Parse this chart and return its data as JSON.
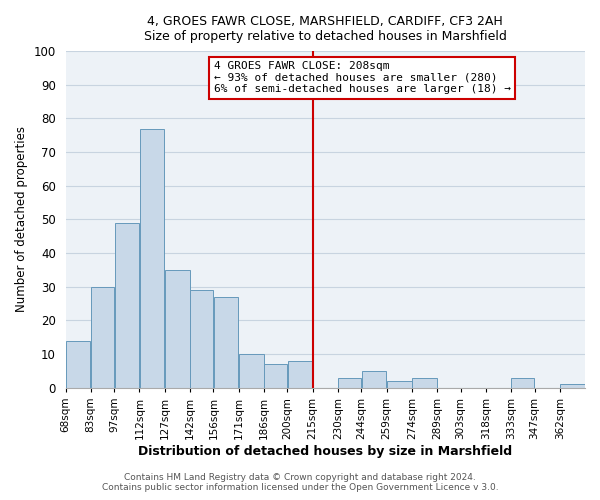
{
  "title": "4, GROES FAWR CLOSE, MARSHFIELD, CARDIFF, CF3 2AH",
  "subtitle": "Size of property relative to detached houses in Marshfield",
  "xlabel": "Distribution of detached houses by size in Marshfield",
  "ylabel": "Number of detached properties",
  "bin_labels": [
    "68sqm",
    "83sqm",
    "97sqm",
    "112sqm",
    "127sqm",
    "142sqm",
    "156sqm",
    "171sqm",
    "186sqm",
    "200sqm",
    "215sqm",
    "230sqm",
    "244sqm",
    "259sqm",
    "274sqm",
    "289sqm",
    "303sqm",
    "318sqm",
    "333sqm",
    "347sqm",
    "362sqm"
  ],
  "bar_heights": [
    14,
    30,
    49,
    77,
    35,
    29,
    27,
    10,
    7,
    8,
    0,
    3,
    5,
    2,
    3,
    0,
    0,
    0,
    3,
    0,
    1
  ],
  "bar_color": "#c8d8e8",
  "bar_edgecolor": "#6699bb",
  "vline_color": "#cc0000",
  "ylim": [
    0,
    100
  ],
  "annotation_line1": "4 GROES FAWR CLOSE: 208sqm",
  "annotation_line2": "← 93% of detached houses are smaller (280)",
  "annotation_line3": "6% of semi-detached houses are larger (18) →",
  "annotation_box_edgecolor": "#cc0000",
  "footer1": "Contains HM Land Registry data © Crown copyright and database right 2024.",
  "footer2": "Contains public sector information licensed under the Open Government Licence v 3.0.",
  "bin_edges": [
    68,
    83,
    97,
    112,
    127,
    142,
    156,
    171,
    186,
    200,
    215,
    230,
    244,
    259,
    274,
    289,
    303,
    318,
    333,
    347,
    362,
    377
  ],
  "grid_color": "#c8d4e0",
  "background_color": "#edf2f7"
}
